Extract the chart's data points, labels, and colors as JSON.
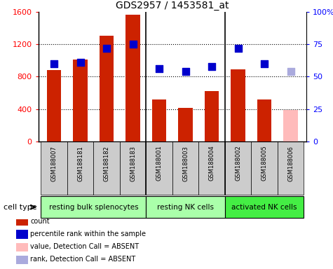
{
  "title": "GDS2957 / 1453581_at",
  "samples": [
    "GSM188007",
    "GSM188181",
    "GSM188182",
    "GSM188183",
    "GSM188001",
    "GSM188003",
    "GSM188004",
    "GSM188002",
    "GSM188005",
    "GSM188006"
  ],
  "counts": [
    880,
    1010,
    1310,
    1565,
    520,
    415,
    625,
    890,
    520,
    390
  ],
  "percentile_ranks": [
    60,
    61,
    72,
    75,
    56,
    54,
    58,
    72,
    60,
    54
  ],
  "absent_flags": [
    false,
    false,
    false,
    false,
    false,
    false,
    false,
    false,
    false,
    true
  ],
  "bar_color_present": "#cc2200",
  "bar_color_absent": "#ffbbbb",
  "dot_color_present": "#0000cc",
  "dot_color_absent": "#aaaadd",
  "ylim_left": [
    0,
    1600
  ],
  "ylim_right": [
    0,
    100
  ],
  "yticks_left": [
    0,
    400,
    800,
    1200,
    1600
  ],
  "yticks_right": [
    0,
    25,
    50,
    75,
    100
  ],
  "ytick_labels_right": [
    "0",
    "25",
    "50",
    "75",
    "100%"
  ],
  "group_borders_after": [
    3,
    6
  ],
  "cell_groups": [
    {
      "label": "resting bulk splenocytes",
      "start": 0,
      "end": 4,
      "color": "#aaffaa"
    },
    {
      "label": "resting NK cells",
      "start": 4,
      "end": 7,
      "color": "#aaffaa"
    },
    {
      "label": "activated NK cells",
      "start": 7,
      "end": 10,
      "color": "#44ee44"
    }
  ],
  "cell_type_label": "cell type",
  "legend_items": [
    {
      "label": "count",
      "color": "#cc2200"
    },
    {
      "label": "percentile rank within the sample",
      "color": "#0000cc"
    },
    {
      "label": "value, Detection Call = ABSENT",
      "color": "#ffbbbb"
    },
    {
      "label": "rank, Detection Call = ABSENT",
      "color": "#aaaadd"
    }
  ],
  "bar_width": 0.55,
  "dot_size": 50,
  "sample_label_bg": "#cccccc",
  "background_color": "#ffffff"
}
